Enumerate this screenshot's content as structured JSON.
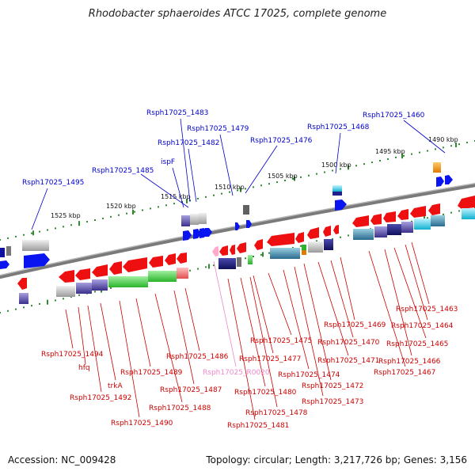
{
  "title": "Rhodobacter sphaeroides ATCC 17025, complete genome",
  "footer": {
    "accession": "Accession: NC_009428",
    "summary": "Topology: circular; Length: 3,217,726 bp; Genes: 3,156"
  },
  "colors": {
    "backbone": "#808080",
    "ticks": "#2e8b2e",
    "forward_gene": "#0000ff",
    "reverse_gene": "#ff0000",
    "rna_gene": "#ffaacc",
    "label_forward": "#0000cc",
    "label_reverse": "#cc0000",
    "label_rna": "#ee88cc"
  },
  "scale_labels": [
    "1525 kbp",
    "1520 kbp",
    "1515 kbp",
    "1510 kbp",
    "1505 kbp",
    "1500 kbp",
    "1495 kbp",
    "1490 kbp"
  ],
  "labels_forward": [
    "Rsph17025_1495",
    "Rsph17025_1485",
    "ispF",
    "Rsph17025_1482",
    "Rsph17025_1483",
    "Rsph17025_1479",
    "Rsph17025_1476",
    "Rsph17025_1468",
    "Rsph17025_1460"
  ],
  "labels_reverse": [
    "Rsph17025_1494",
    "hfq",
    "Rsph17025_1492",
    "trkA",
    "Rsph17025_1490",
    "Rsph17025_1489",
    "Rsph17025_1488",
    "Rsph17025_1487",
    "Rsph17025_1486",
    "Rsph17025_1481",
    "Rsph17025_1480",
    "Rsph17025_1478",
    "Rsph17025_1477",
    "Rsph17025_1475",
    "Rsph17025_1474",
    "Rsph17025_1473",
    "Rsph17025_1472",
    "Rsph17025_1471",
    "Rsph17025_1470",
    "Rsph17025_1469",
    "Rsph17025_1467",
    "Rsph17025_1466",
    "Rsph17025_1465",
    "Rsph17025_1464",
    "Rsph17025_1463"
  ],
  "labels_rna": [
    "Rsph17025_R0020"
  ]
}
